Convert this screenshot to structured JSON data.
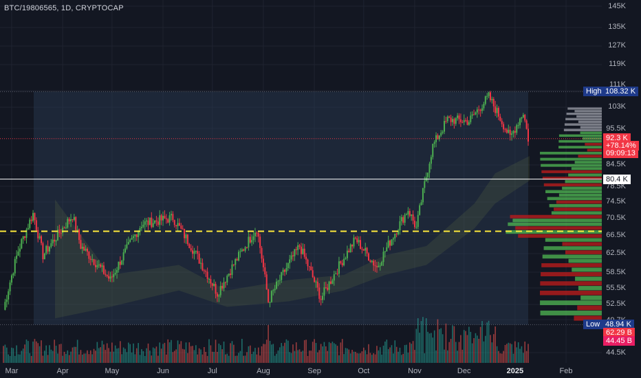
{
  "header": {
    "symbol": "BTC/19806565, 1D, CRYPTOCAP"
  },
  "chart_data": {
    "type": "candlestick",
    "y_axis": {
      "scale": "log",
      "ticks": [
        "145K",
        "135K",
        "127K",
        "119K",
        "111K",
        "103K",
        "95.5K",
        "84.5K",
        "78.5K",
        "74.5K",
        "70.5K",
        "66.5K",
        "62.5K",
        "58.5K",
        "55.5K",
        "52.5K",
        "49.7K",
        "44.5K"
      ],
      "tick_values": [
        145,
        135,
        127,
        119,
        111,
        103,
        95.5,
        84.5,
        78.5,
        74.5,
        70.5,
        66.5,
        62.5,
        58.5,
        55.5,
        52.5,
        49.7,
        44.5
      ],
      "unit": "K"
    },
    "x_axis": {
      "ticks": [
        "Mar",
        "Apr",
        "May",
        "Jun",
        "Jul",
        "Aug",
        "Sep",
        "Oct",
        "Nov",
        "Dec",
        "2025",
        "Feb"
      ],
      "bold_tick": "2025"
    },
    "range_labels": {
      "high_label": "High",
      "high_value": "108.32 K",
      "low_label": "Low",
      "low_value": "48.94 K"
    },
    "last_price": {
      "price": "92.3 K",
      "change": "+78.14%",
      "countdown": "09:09:13"
    },
    "level_label": "80.4 K",
    "volume_labels": [
      "62.29 B",
      "44.45 B"
    ],
    "levels": {
      "high": 108.32,
      "low": 48.94,
      "white_line": 80.4,
      "yellow_dashed": 67.3,
      "last": 92.3
    },
    "closes_approx": [
      {
        "date": "Feb",
        "close": 51.5
      },
      {
        "date": "Mar 5",
        "close": 63
      },
      {
        "date": "Mar 14",
        "close": 71.5
      },
      {
        "date": "Mar 20",
        "close": 62
      },
      {
        "date": "Apr 8",
        "close": 71
      },
      {
        "date": "Apr 13",
        "close": 64
      },
      {
        "date": "May 1",
        "close": 57
      },
      {
        "date": "May 20",
        "close": 69
      },
      {
        "date": "Jun 7",
        "close": 70.5
      },
      {
        "date": "Jul 5",
        "close": 54.5
      },
      {
        "date": "Jul 29",
        "close": 68
      },
      {
        "date": "Aug 5",
        "close": 53
      },
      {
        "date": "Aug 24",
        "close": 64
      },
      {
        "date": "Sep 6",
        "close": 53.5
      },
      {
        "date": "Sep 27",
        "close": 65.5
      },
      {
        "date": "Oct 10",
        "close": 59.5
      },
      {
        "date": "Oct 29",
        "close": 72.5
      },
      {
        "date": "Nov 3",
        "close": 68
      },
      {
        "date": "Nov 13",
        "close": 90
      },
      {
        "date": "Nov 22",
        "close": 98.5
      },
      {
        "date": "Dec 5",
        "close": 98
      },
      {
        "date": "Dec 17",
        "close": 106.5
      },
      {
        "date": "Dec 30",
        "close": 92.5
      },
      {
        "date": "Jan 7",
        "close": 101
      },
      {
        "date": "Jan 9",
        "close": 92.3
      }
    ],
    "colors": {
      "up": "#4caf50",
      "down": "#f23645",
      "yellow": "#ffeb3b",
      "high_tag": "#1e3a8a",
      "price_tag": "#f23645",
      "volume_tag_2": "#e91e63"
    }
  }
}
